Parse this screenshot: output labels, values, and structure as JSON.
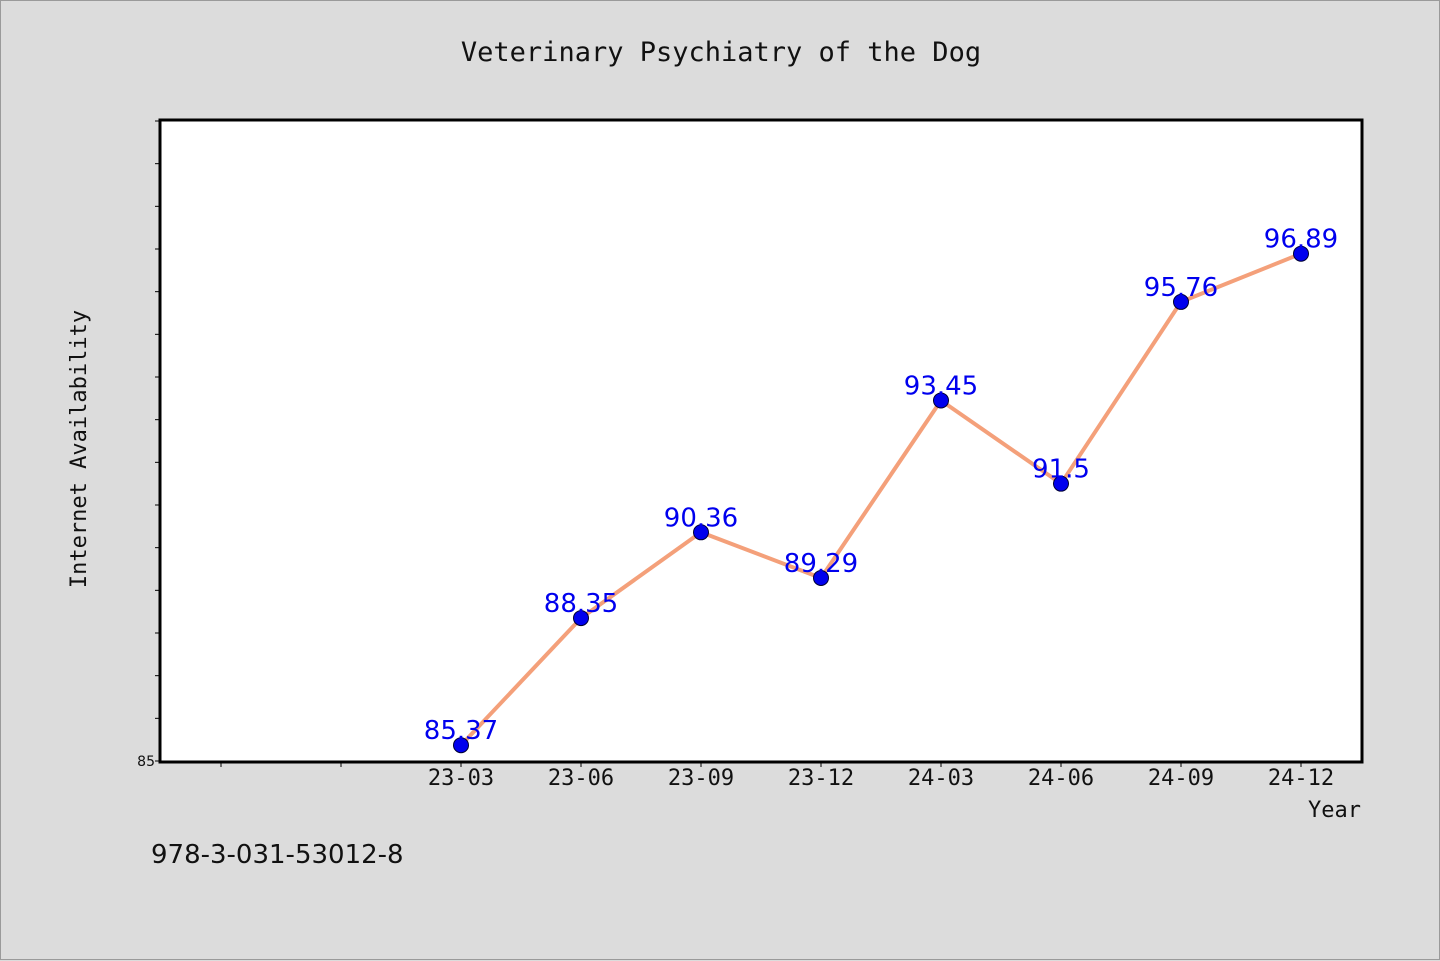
{
  "chart_data": {
    "type": "line",
    "title": "Veterinary Psychiatry of the Dog",
    "xlabel": "Year",
    "ylabel": "Internet Availability",
    "categories": [
      "23-03",
      "23-06",
      "23-09",
      "23-12",
      "24-03",
      "24-06",
      "24-09",
      "24-12"
    ],
    "series": [
      {
        "values": [
          85.37,
          88.35,
          90.36,
          89.29,
          93.45,
          91.5,
          95.76,
          96.89
        ],
        "labels": [
          "85.37",
          "88.35",
          "90.36",
          "89.29",
          "93.45",
          "91.5",
          "95.76",
          "96.89"
        ],
        "line_color": "#f4a07a",
        "marker_color": "#0000ee"
      }
    ],
    "ylim": [
      85,
      100
    ],
    "ytick_labels": [
      "85"
    ],
    "grid": false,
    "legend": "none"
  },
  "footer": {
    "isbn": "978-3-031-53012-8"
  }
}
